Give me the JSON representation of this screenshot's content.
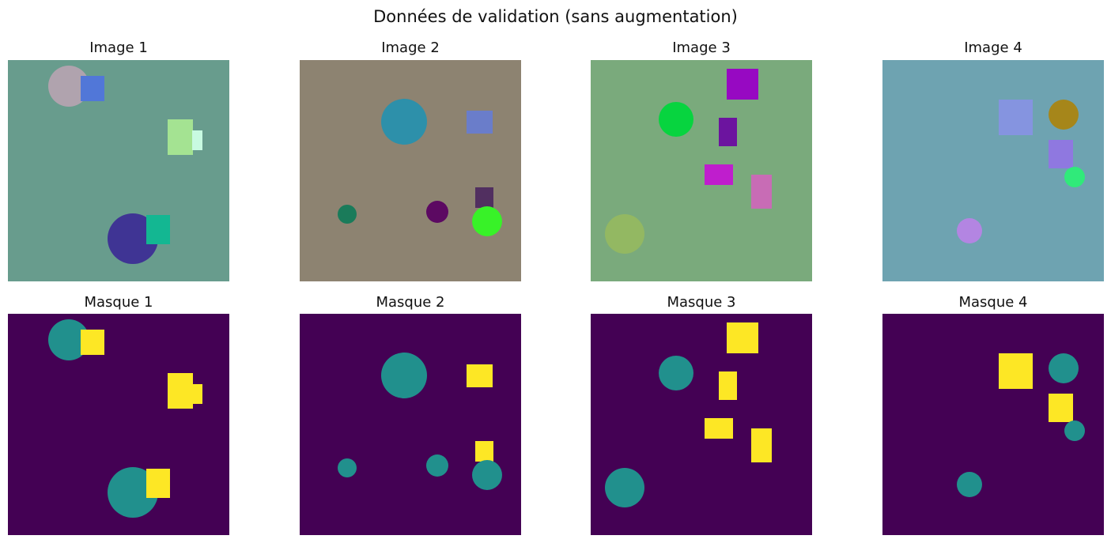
{
  "figure": {
    "title": "Données de validation (sans augmentation)"
  },
  "rows": [
    {
      "kind": "image",
      "panels": [
        {
          "label": "Image 1",
          "background": "#689c8d",
          "shapes": [
            {
              "kind": "circle",
              "color": "#b0a3ae"
            },
            {
              "kind": "square",
              "color": "#5177d8"
            },
            {
              "kind": "square",
              "color": "#a4e392"
            },
            {
              "kind": "square",
              "color": "#c8fae1"
            },
            {
              "kind": "circle",
              "color": "#3f3494"
            },
            {
              "kind": "square",
              "color": "#13b792"
            }
          ]
        },
        {
          "label": "Image 2",
          "background": "#8d8371",
          "shapes": [
            {
              "kind": "circle",
              "color": "#2d90aa"
            },
            {
              "kind": "square",
              "color": "#6a7dca"
            },
            {
              "kind": "circle",
              "color": "#1a7b5a"
            },
            {
              "kind": "circle",
              "color": "#5c0962"
            },
            {
              "kind": "square",
              "color": "#512f60"
            },
            {
              "kind": "circle",
              "color": "#38f228"
            }
          ]
        },
        {
          "label": "Image 3",
          "background": "#7aaa7c",
          "shapes": [
            {
              "kind": "square",
              "color": "#9709c2"
            },
            {
              "kind": "circle",
              "color": "#07d43f"
            },
            {
              "kind": "square",
              "color": "#6c149f"
            },
            {
              "kind": "square",
              "color": "#bf1ecd"
            },
            {
              "kind": "square",
              "color": "#c86cb5"
            },
            {
              "kind": "circle",
              "color": "#93b862"
            }
          ]
        },
        {
          "label": "Image 4",
          "background": "#6ea3b1",
          "shapes": [
            {
              "kind": "square",
              "color": "#8594e0"
            },
            {
              "kind": "circle",
              "color": "#a6861a"
            },
            {
              "kind": "square",
              "color": "#8f78e0"
            },
            {
              "kind": "circle",
              "color": "#30ea7a"
            },
            {
              "kind": "circle",
              "color": "#b385e2"
            }
          ]
        }
      ]
    },
    {
      "kind": "mask",
      "mask_colors": {
        "background": "#440154",
        "circle": "#21908d",
        "square": "#fde725"
      },
      "panels": [
        {
          "label": "Masque 1"
        },
        {
          "label": "Masque 2"
        },
        {
          "label": "Masque 3"
        },
        {
          "label": "Masque 4"
        }
      ]
    }
  ]
}
